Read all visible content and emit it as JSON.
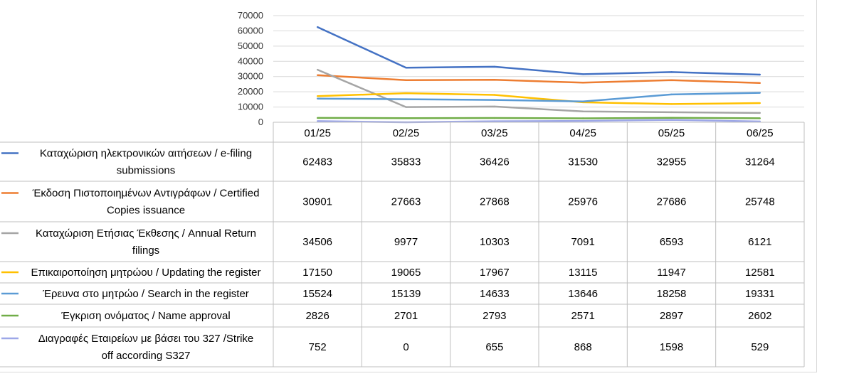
{
  "chart_data": {
    "type": "line",
    "title": "",
    "xlabel": "",
    "ylabel": "",
    "ylim": [
      0,
      70000
    ],
    "yticks": [
      0,
      10000,
      20000,
      30000,
      40000,
      50000,
      60000,
      70000
    ],
    "grid": true,
    "legend": "left (data table)",
    "categories": [
      "01/25",
      "02/25",
      "03/25",
      "04/25",
      "05/25",
      "06/25"
    ],
    "series": [
      {
        "name": "Καταχώριση ηλεκτρονικών αιτήσεων / e-filing submissions",
        "label_lines": [
          "Καταχώριση ηλεκτρονικών αιτήσεων / e-filing",
          "submissions"
        ],
        "color": "#4472c4",
        "values": [
          62483,
          35833,
          36426,
          31530,
          32955,
          31264
        ]
      },
      {
        "name": "Έκδοση Πιστοποιημένων Αντιγράφων / Certified Copies issuance",
        "label_lines": [
          "Έκδοση Πιστοποιημένων Αντιγράφων / Certified",
          "Copies issuance"
        ],
        "color": "#ed7d31",
        "values": [
          30901,
          27663,
          27868,
          25976,
          27686,
          25748
        ]
      },
      {
        "name": "Καταχώριση Ετήσιας Έκθεσης / Annual Return filings",
        "label_lines": [
          "Καταχώριση Ετήσιας Έκθεσης / Annual Return",
          "filings"
        ],
        "color": "#a5a5a5",
        "values": [
          34506,
          9977,
          10303,
          7091,
          6593,
          6121
        ]
      },
      {
        "name": "Επικαιροποίηση μητρώου / Updating the register",
        "label_lines": [
          "Επικαιροποίηση μητρώου / Updating the register"
        ],
        "color": "#ffc000",
        "values": [
          17150,
          19065,
          17967,
          13115,
          11947,
          12581
        ]
      },
      {
        "name": "Έρευνα στο μητρώο / Search in the register",
        "label_lines": [
          "Έρευνα στο μητρώο / Search in the register"
        ],
        "color": "#5b9bd5",
        "values": [
          15524,
          15139,
          14633,
          13646,
          18258,
          19331
        ]
      },
      {
        "name": "Έγκριση ονόματος / Name approval",
        "label_lines": [
          "Έγκριση ονόματος / Name approval"
        ],
        "color": "#70ad47",
        "values": [
          2826,
          2701,
          2793,
          2571,
          2897,
          2602
        ]
      },
      {
        "name": "Διαγραφές Εταιρείων με βάσει του 327 /Strike off according S327",
        "label_lines": [
          "Διαγραφές Εταιρείων με βάσει του 327 /Strike",
          "off according S327"
        ],
        "color": "#9da7e8",
        "values": [
          752,
          0,
          655,
          868,
          1598,
          529
        ]
      }
    ]
  }
}
